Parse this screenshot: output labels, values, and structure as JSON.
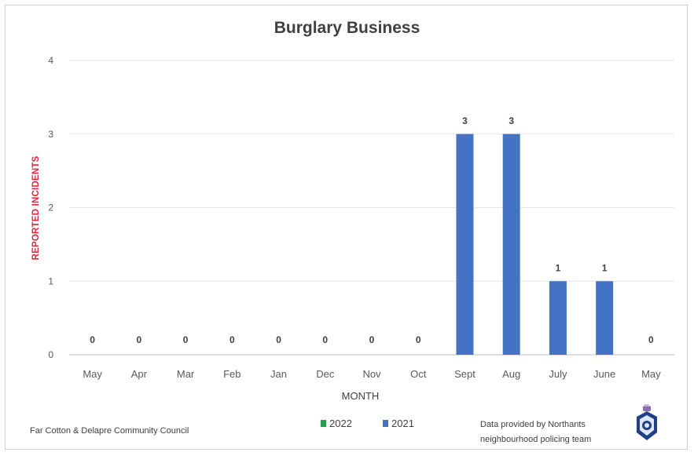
{
  "chart_data": {
    "type": "bar",
    "title": "Burglary Business",
    "xlabel": "MONTH",
    "ylabel": "REPORTED INCIDENTS",
    "categories": [
      "May",
      "Apr",
      "Mar",
      "Feb",
      "Jan",
      "Dec",
      "Nov",
      "Oct",
      "Sept",
      "Aug",
      "July",
      "June",
      "May"
    ],
    "series": [
      {
        "name": "2022",
        "color": "#22a04b",
        "values": [
          0,
          0,
          0,
          0,
          0,
          0,
          0,
          0,
          null,
          null,
          null,
          null,
          null
        ]
      },
      {
        "name": "2021",
        "color": "#4472c4",
        "values": [
          null,
          null,
          null,
          null,
          null,
          null,
          null,
          null,
          3,
          3,
          1,
          1,
          0
        ]
      }
    ],
    "data_labels": [
      "0",
      "0",
      "0",
      "0",
      "0",
      "0",
      "0",
      "0",
      "3",
      "3",
      "1",
      "1",
      "0"
    ],
    "ylim": [
      0,
      4
    ],
    "yticks": [
      "0",
      "1",
      "2",
      "3",
      "4"
    ],
    "grid": true,
    "legend": "bottom-center"
  },
  "footer": {
    "left": "Far Cotton & Delapre Community Council",
    "right_line1": "Data provided by Northants",
    "right_line2": "neighbourhood policing team"
  },
  "badge": {
    "icon": "police-badge-icon"
  }
}
